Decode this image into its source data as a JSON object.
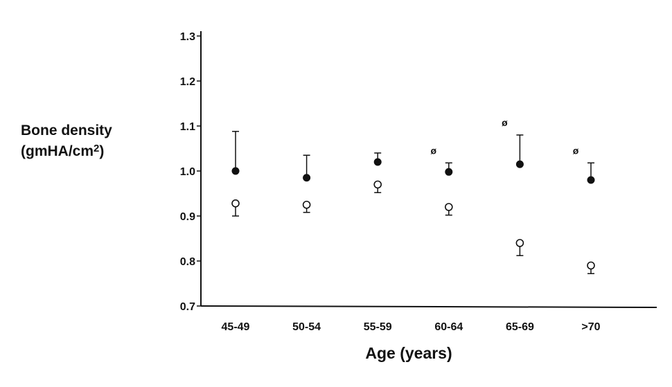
{
  "chart_data": {
    "type": "scatter",
    "title": "",
    "ylabel": {
      "text": "Bone density",
      "unit_prefix": "(gmHA/cm",
      "unit_sup": "2",
      "unit_suffix": ")"
    },
    "xlabel": "Age (years)",
    "categories": [
      "45-49",
      "50-54",
      "55-59",
      "60-64",
      "65-69",
      ">70"
    ],
    "ylim": [
      0.7,
      1.3
    ],
    "yticks": [
      "0.7",
      "0.8",
      "0.9",
      "1.0",
      "1.1",
      "1.2",
      "1.3"
    ],
    "marker_symbol": "ø",
    "series": [
      {
        "marker": "filled",
        "values": [
          1.0,
          0.985,
          1.02,
          0.998,
          1.015,
          0.98
        ],
        "error_upper": [
          1.088,
          1.035,
          1.04,
          1.018,
          1.08,
          1.018
        ]
      },
      {
        "marker": "open",
        "values": [
          0.928,
          0.925,
          0.97,
          0.92,
          0.84,
          0.79
        ],
        "error_lower": [
          0.9,
          0.908,
          0.952,
          0.902,
          0.812,
          0.772
        ]
      }
    ],
    "significance_markers": [
      false,
      false,
      false,
      true,
      true,
      true
    ],
    "grid": false,
    "legend": "none"
  }
}
